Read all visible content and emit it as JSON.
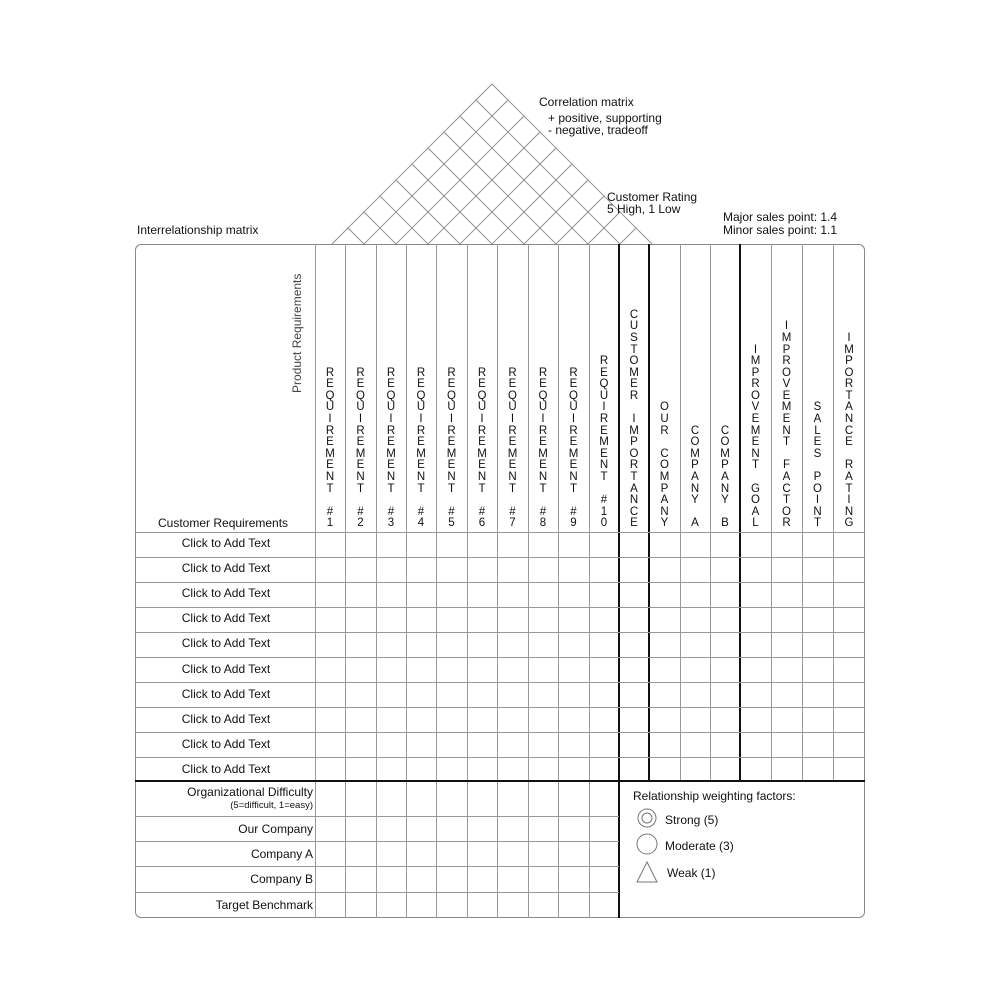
{
  "annotations": {
    "correlation_title": "Correlation matrix",
    "correlation_positive": "+ positive, supporting",
    "correlation_negative": "- negative, tradeoff",
    "customer_rating_title": "Customer Rating",
    "customer_rating_scale": "5 High, 1 Low",
    "major_sales_point": "Major sales point: 1.4",
    "minor_sales_point": "Minor sales point: 1.1",
    "interrelationship_matrix": "Interrelationship matrix"
  },
  "header": {
    "product_requirements": "Product Requirements",
    "customer_requirements": "Customer Requirements",
    "requirement_columns": [
      "REQUIREMENT #1",
      "REQUIREMENT #2",
      "REQUIREMENT #3",
      "REQUIREMENT #4",
      "REQUIREMENT #5",
      "REQUIREMENT #6",
      "REQUIREMENT #7",
      "REQUIREMENT #8",
      "REQUIREMENT #9",
      "REQUIREMENT #10"
    ],
    "rating_columns": [
      "CUSTOMER IMPORTANCE",
      "OUR COMPANY",
      "COMPANY A",
      "COMPANY B",
      "IMPROVEMENT GOAL",
      "IMPROVEMENT FACTOR",
      "SALES POINT",
      "IMPORTANCE RATING"
    ]
  },
  "customer_rows": [
    "Click to Add Text",
    "Click to Add Text",
    "Click to Add Text",
    "Click to Add Text",
    "Click to Add Text",
    "Click to Add Text",
    "Click to Add Text",
    "Click to Add Text",
    "Click to Add Text",
    "Click to Add Text"
  ],
  "bottom_rows": {
    "organizational_difficulty": "Organizational Difficulty",
    "organizational_difficulty_scale": "(5=difficult, 1=easy)",
    "our_company": "Our Company",
    "company_a": "Company A",
    "company_b": "Company B",
    "target_benchmark": "Target Benchmark"
  },
  "legend": {
    "title": "Relationship weighting factors:",
    "items": [
      {
        "icon": "double-circle-icon",
        "label": "Strong (5)"
      },
      {
        "icon": "circle-icon",
        "label": "Moderate (3)"
      },
      {
        "icon": "triangle-icon",
        "label": "Weak (1)"
      }
    ]
  }
}
